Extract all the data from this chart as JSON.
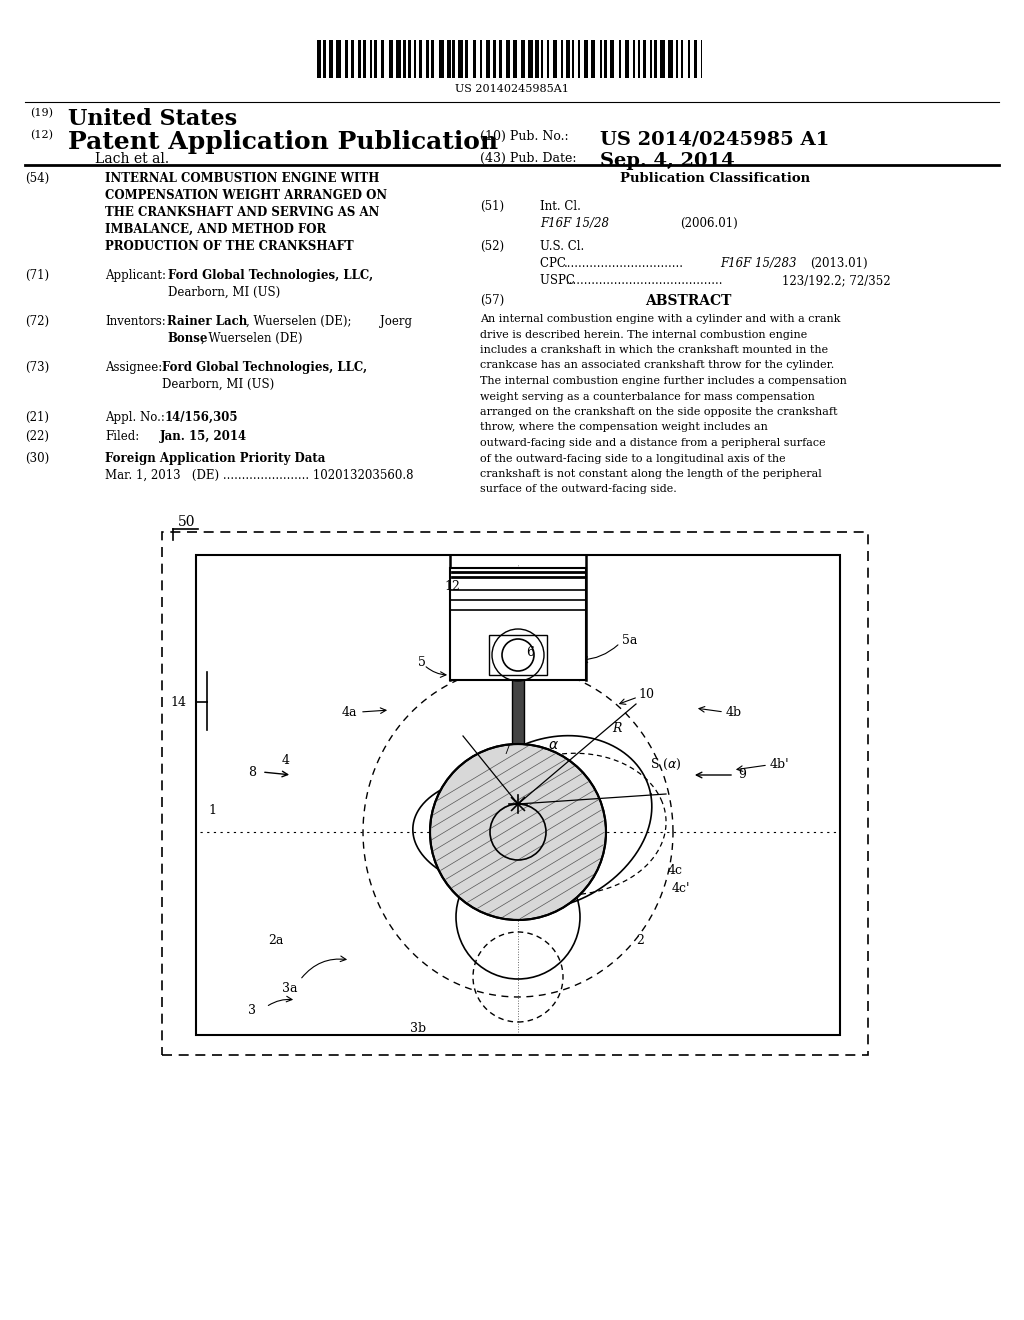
{
  "title": "US 20140245985A1",
  "header_line1_label": "(19)",
  "header_line1_text": "United States",
  "header_line2_label": "(12)",
  "header_line2_text": "Patent Application Publication",
  "header_pub_no_label": "(10) Pub. No.:",
  "header_pub_no": "US 2014/0245985 A1",
  "header_author": "Lach et al.",
  "header_date_label": "(43) Pub. Date:",
  "header_date": "Sep. 4, 2014",
  "field54_label": "(54)",
  "field54_lines": [
    "INTERNAL COMBUSTION ENGINE WITH",
    "COMPENSATION WEIGHT ARRANGED ON",
    "THE CRANKSHAFT AND SERVING AS AN",
    "IMBALANCE, AND METHOD FOR",
    "PRODUCTION OF THE CRANKSHAFT"
  ],
  "pub_class_title": "Publication Classification",
  "field51_label": "(51)",
  "field52_label": "(52)",
  "field57_label": "(57)",
  "field57_title": "ABSTRACT",
  "abstract_text": "An internal combustion engine with a cylinder and with a crank drive is described herein. The internal combustion engine includes a crankshaft in which the crankshaft mounted in the crankcase has an associated crankshaft throw for the cylinder. The internal combustion engine further includes a compensation weight serving as a counterbalance for mass compensation arranged on the crankshaft on the side opposite the crankshaft throw, where the compensation weight includes an outward-facing side and a distance from a peripheral surface of the outward-facing side to a longitudinal axis of the crankshaft is not constant along the length of the peripheral surface of the outward-facing side.",
  "bg_color": "#ffffff",
  "text_color": "#000000"
}
